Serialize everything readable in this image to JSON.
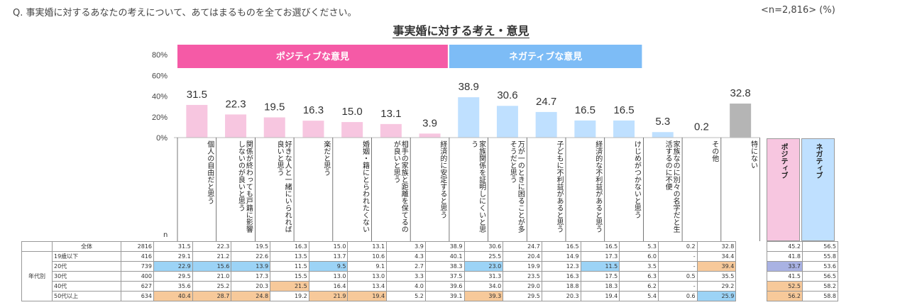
{
  "question": "Q. 事実婚に対するあなたの考えについて、あてはまるものを全てお選びください。",
  "sample": "<n=2,816> (%)",
  "colors": {
    "positive": "#f7c6e0",
    "positive_head": "#f55aa6",
    "negative": "#bfe0ff",
    "negative_head": "#7dbcf6",
    "other": "#b5b5b5",
    "blue_cell": "#9cd3f6",
    "orange_cell": "#f7c99a",
    "purple_cell": "#a9b2e3"
  },
  "chart_data": {
    "type": "bar",
    "title": "事実婚に対する考え・意見",
    "ylim": [
      0,
      80
    ],
    "yticks": [
      "0%",
      "20%",
      "40%",
      "60%",
      "80%"
    ],
    "groups": [
      {
        "label": "ポジティブな意見",
        "from": 0,
        "to": 6
      },
      {
        "label": "ネガティブな意見",
        "from": 7,
        "to": 11
      }
    ],
    "categories": [
      "個人の自由だと思う",
      "関係が終わっても戸籍に影響しないのが良いと思う",
      "好きな人と一緒にいられれば良いと思う",
      "楽だと思う",
      "婚姻・籍にとらわれたくない",
      "相手の家族と距離を保てるのが良いと思う",
      "経済的に安定すると思う",
      "家族関係を証明しにくいと思う",
      "万が一のときに困ることが多そうだと思う",
      "子どもに不利益があると思う",
      "経済的な不利益があると思う",
      "けじめがつかないと思う",
      "家族なのに別々の名字だと生活するのに不便",
      "その他",
      "特にない"
    ],
    "values": [
      31.5,
      22.3,
      19.5,
      16.3,
      15.0,
      13.1,
      3.9,
      38.9,
      30.6,
      24.7,
      16.5,
      16.5,
      5.3,
      0.2,
      32.8
    ],
    "value_labels": [
      "31.5",
      "22.3",
      "19.5",
      "16.3",
      "15.0",
      "13.1",
      "3.9",
      "38.9",
      "30.6",
      "24.7",
      "16.5",
      "16.5",
      "5.3",
      "0.2",
      "32.8"
    ],
    "kinds": [
      "pos",
      "pos",
      "pos",
      "pos",
      "pos",
      "pos",
      "pos",
      "neg",
      "neg",
      "neg",
      "neg",
      "neg",
      "neg",
      "other",
      "other"
    ]
  },
  "table": {
    "n_label": "n",
    "side_label": "年代別",
    "summary_headers": [
      "ポジティブ",
      "ネガティブ"
    ],
    "rows": [
      {
        "label": "全体",
        "n": "2816",
        "cells": [
          "31.5",
          "22.3",
          "19.5",
          "16.3",
          "15.0",
          "13.1",
          "3.9",
          "38.9",
          "30.6",
          "24.7",
          "16.5",
          "16.5",
          "5.3",
          "0.2",
          "32.8"
        ],
        "summary": [
          "45.2",
          "56.5"
        ]
      },
      {
        "label": "19歳以下",
        "n": "416",
        "cells": [
          "29.1",
          "21.2",
          "22.6",
          "13.5",
          "13.7",
          "10.6",
          "4.3",
          "40.1",
          "25.5",
          "20.4",
          "14.9",
          "17.3",
          "6.0",
          "-",
          "34.4"
        ],
        "summary": [
          "41.8",
          "55.8"
        ]
      },
      {
        "label": "20代",
        "n": "739",
        "cells": [
          "22.9",
          "15.6",
          "13.9",
          "11.5",
          "9.5",
          "9.1",
          "2.7",
          "38.3",
          "23.0",
          "19.9",
          "12.3",
          "11.5",
          "3.5",
          "-",
          "39.4"
        ],
        "summary": [
          "33.7",
          "53.6"
        ]
      },
      {
        "label": "30代",
        "n": "400",
        "cells": [
          "29.5",
          "21.0",
          "17.3",
          "15.5",
          "13.0",
          "13.0",
          "3.3",
          "37.5",
          "31.3",
          "23.5",
          "16.3",
          "17.5",
          "6.3",
          "0.5",
          "35.5"
        ],
        "summary": [
          "41.5",
          "56.5"
        ]
      },
      {
        "label": "40代",
        "n": "627",
        "cells": [
          "35.6",
          "25.2",
          "20.3",
          "21.5",
          "16.4",
          "13.4",
          "4.0",
          "39.6",
          "34.0",
          "29.0",
          "18.8",
          "18.3",
          "6.2",
          "-",
          "29.2"
        ],
        "summary": [
          "52.5",
          "58.2"
        ]
      },
      {
        "label": "50代以上",
        "n": "634",
        "cells": [
          "40.4",
          "28.7",
          "24.8",
          "19.2",
          "21.9",
          "19.4",
          "5.2",
          "39.1",
          "39.3",
          "29.5",
          "20.3",
          "19.4",
          "5.4",
          "0.6",
          "25.9"
        ],
        "summary": [
          "56.2",
          "58.8"
        ]
      }
    ],
    "highlights": {
      "2": {
        "0": "blue",
        "1": "blue",
        "2": "blue",
        "4": "blue",
        "8": "blue",
        "11": "blue",
        "14": "orange",
        "s0": "purple"
      },
      "4": {
        "3": "orange",
        "s0": "orange"
      },
      "5": {
        "0": "orange",
        "1": "orange",
        "2": "orange",
        "4": "orange",
        "5": "orange",
        "8": "orange",
        "14": "blue",
        "s0": "orange"
      }
    }
  }
}
